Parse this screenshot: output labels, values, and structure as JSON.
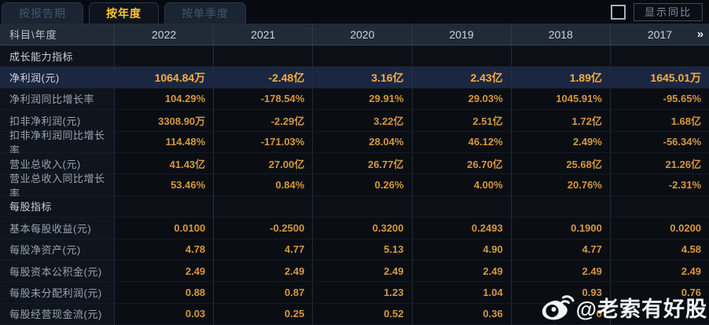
{
  "tabs": [
    {
      "id": "by-report-period",
      "label": "按报告期",
      "active": false
    },
    {
      "id": "by-year",
      "label": "按年度",
      "active": true
    },
    {
      "id": "by-quarter",
      "label": "按单季度",
      "active": false
    }
  ],
  "controls": {
    "show_yoy_label": "显示同比",
    "checkbox_checked": false
  },
  "table": {
    "corner_label": "科目\\年度",
    "years": [
      "2022",
      "2021",
      "2020",
      "2019",
      "2018",
      "2017"
    ],
    "more_icon": "»",
    "sections": [
      {
        "title": "成长能力指标",
        "rows": [
          {
            "label": "净利润(元)",
            "highlight": true,
            "values": [
              "1064.84万",
              "-2.48亿",
              "3.16亿",
              "2.43亿",
              "1.89亿",
              "1645.01万"
            ]
          },
          {
            "label": "净利润同比增长率",
            "highlight": false,
            "values": [
              "104.29%",
              "-178.54%",
              "29.91%",
              "29.03%",
              "1045.91%",
              "-95.65%"
            ]
          },
          {
            "label": "扣非净利润(元)",
            "highlight": false,
            "values": [
              "3308.90万",
              "-2.29亿",
              "3.22亿",
              "2.51亿",
              "1.72亿",
              "1.68亿"
            ]
          },
          {
            "label": "扣非净利润同比增长率",
            "highlight": false,
            "values": [
              "114.48%",
              "-171.03%",
              "28.04%",
              "46.12%",
              "2.49%",
              "-56.34%"
            ]
          },
          {
            "label": "营业总收入(元)",
            "highlight": false,
            "values": [
              "41.43亿",
              "27.00亿",
              "26.77亿",
              "26.70亿",
              "25.68亿",
              "21.26亿"
            ]
          },
          {
            "label": "营业总收入同比增长率",
            "highlight": false,
            "values": [
              "53.46%",
              "0.84%",
              "0.26%",
              "4.00%",
              "20.76%",
              "-2.31%"
            ]
          }
        ]
      },
      {
        "title": "每股指标",
        "rows": [
          {
            "label": "基本每股收益(元)",
            "highlight": false,
            "values": [
              "0.0100",
              "-0.2500",
              "0.3200",
              "0.2493",
              "0.1900",
              "0.0200"
            ]
          },
          {
            "label": "每股净资产(元)",
            "highlight": false,
            "values": [
              "4.78",
              "4.77",
              "5.13",
              "4.90",
              "4.77",
              "4.58"
            ]
          },
          {
            "label": "每股资本公积金(元)",
            "highlight": false,
            "values": [
              "2.49",
              "2.49",
              "2.49",
              "2.49",
              "2.49",
              "2.49"
            ]
          },
          {
            "label": "每股未分配利润(元)",
            "highlight": false,
            "values": [
              "0.88",
              "0.87",
              "1.23",
              "1.04",
              "0.93",
              "0.76"
            ]
          },
          {
            "label": "每股经营现金流(元)",
            "highlight": false,
            "values": [
              "0.03",
              "0.25",
              "0.52",
              "0.36",
              "0",
              ""
            ]
          }
        ]
      }
    ]
  },
  "watermark": {
    "text": "@老索有好股",
    "icon": "weibo-logo"
  },
  "colors": {
    "accent_gold": "#ffc42e",
    "value_orange": "#d6973f",
    "highlight_row_bg": "#1b2740",
    "header_row_bg": "#212b38",
    "page_bg": "#05080d"
  }
}
